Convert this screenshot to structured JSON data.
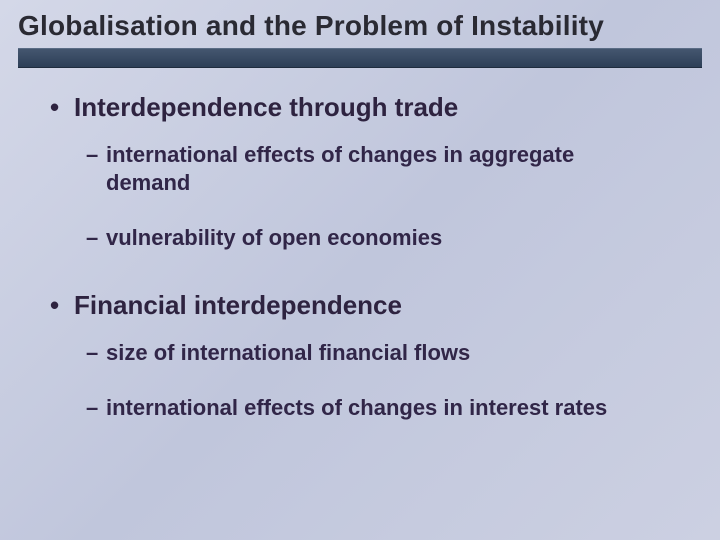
{
  "slide": {
    "title": "Globalisation and the Problem of Instability",
    "title_color": "#2a2a33",
    "title_fontsize": 28,
    "title_bar_gradient": [
      "#44566f",
      "#2d3f57"
    ],
    "background_gradient": [
      "#d4d8e8",
      "#c0c6dc",
      "#ccd0e2"
    ],
    "bullets": [
      {
        "text": "Interdependence through trade",
        "level": 1,
        "subs": [
          {
            "text": "international effects of changes in aggregate demand",
            "level": 2
          },
          {
            "text": "vulnerability of open economies",
            "level": 2
          }
        ]
      },
      {
        "text": "Financial interdependence",
        "level": 1,
        "subs": [
          {
            "text": "size of international financial flows",
            "level": 2
          },
          {
            "text": "international effects of changes in interest rates",
            "level": 2
          }
        ]
      }
    ],
    "level1_color": "#2e2340",
    "level1_fontsize": 26,
    "level2_color": "#312648",
    "level2_fontsize": 22
  }
}
